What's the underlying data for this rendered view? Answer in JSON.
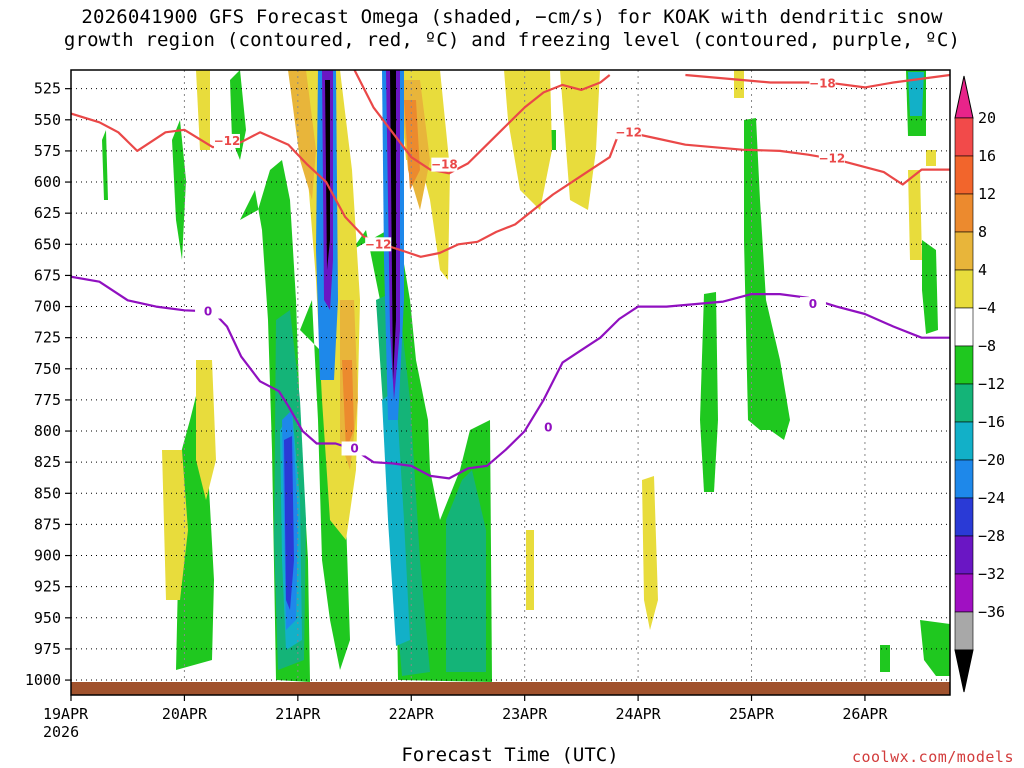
{
  "title": "2026041900 GFS Forecast Omega (shaded, −cm/s) for KOAK with dendritic snow\ngrowth region (contoured, red, ºC) and freezing level (contoured, purple, ºC)",
  "xlabel": "Forecast Time (UTC)",
  "credit": "coolwx.com/models",
  "chart_data": {
    "type": "heatmap",
    "x_ticks": [
      {
        "label": "19APR",
        "sublabel": "2026",
        "hours": 0
      },
      {
        "label": "20APR",
        "hours": 24
      },
      {
        "label": "21APR",
        "hours": 48
      },
      {
        "label": "22APR",
        "hours": 72
      },
      {
        "label": "23APR",
        "hours": 96
      },
      {
        "label": "24APR",
        "hours": 120
      },
      {
        "label": "25APR",
        "hours": 144
      },
      {
        "label": "26APR",
        "hours": 168
      }
    ],
    "xlim_hours": [
      0,
      186
    ],
    "y_ticks": [
      525,
      550,
      575,
      600,
      625,
      650,
      675,
      700,
      725,
      750,
      775,
      800,
      825,
      850,
      875,
      900,
      925,
      950,
      975,
      1000
    ],
    "ylim_hPa": [
      510,
      1012
    ],
    "grid": true,
    "colorbar": {
      "labels": [
        "20",
        "16",
        "12",
        "8",
        "4",
        "−4",
        "−8",
        "−12",
        "−16",
        "−20",
        "−24",
        "−28",
        "−32",
        "−36"
      ],
      "colors": [
        "#f24a4a",
        "#f2652c",
        "#ec8a2e",
        "#e8b53a",
        "#e8dc3c",
        "#ffffff",
        "#1fc81f",
        "#14b478",
        "#12b0c8",
        "#1e88ea",
        "#2a3ad6",
        "#6a16c4",
        "#a010c2",
        "#a8a8a8"
      ]
    },
    "contours": [
      {
        "kind": "freezing",
        "color": "#9010c0",
        "label": "0",
        "points": [
          [
            0,
            676
          ],
          [
            6,
            680
          ],
          [
            12,
            695
          ],
          [
            18,
            700
          ],
          [
            24,
            703
          ],
          [
            30,
            704
          ],
          [
            33,
            716
          ],
          [
            36,
            740
          ],
          [
            40,
            760
          ],
          [
            44,
            768
          ],
          [
            46,
            780
          ],
          [
            49,
            800
          ],
          [
            52,
            810
          ],
          [
            56,
            810
          ],
          [
            60,
            815
          ],
          [
            64,
            825
          ],
          [
            68,
            826
          ],
          [
            72,
            828
          ],
          [
            76,
            836
          ],
          [
            80,
            838
          ],
          [
            84,
            830
          ],
          [
            88,
            828
          ],
          [
            92,
            815
          ],
          [
            96,
            800
          ],
          [
            100,
            775
          ],
          [
            104,
            745
          ],
          [
            108,
            735
          ],
          [
            112,
            725
          ],
          [
            116,
            710
          ],
          [
            120,
            700
          ],
          [
            126,
            700
          ],
          [
            132,
            698
          ],
          [
            138,
            696
          ],
          [
            144,
            690
          ],
          [
            150,
            690
          ],
          [
            156,
            693
          ],
          [
            162,
            700
          ],
          [
            168,
            706
          ],
          [
            174,
            716
          ],
          [
            180,
            725
          ],
          [
            186,
            725
          ]
        ],
        "label_points": [
          [
            29,
            704
          ],
          [
            60,
            814
          ],
          [
            101,
            797
          ],
          [
            157,
            698
          ]
        ]
      },
      {
        "kind": "dgz",
        "color": "#ea4848",
        "label": "−12",
        "points": [
          [
            0,
            545
          ],
          [
            6,
            552
          ],
          [
            10,
            560
          ],
          [
            14,
            575
          ],
          [
            20,
            560
          ],
          [
            24,
            558
          ],
          [
            30,
            572
          ],
          [
            36,
            568
          ],
          [
            40,
            560
          ],
          [
            46,
            570
          ],
          [
            50,
            586
          ],
          [
            54,
            600
          ],
          [
            58,
            628
          ],
          [
            62,
            644
          ],
          [
            66,
            650
          ],
          [
            70,
            655
          ],
          [
            74,
            660
          ],
          [
            78,
            657
          ],
          [
            82,
            650
          ],
          [
            86,
            648
          ],
          [
            90,
            640
          ],
          [
            94,
            634
          ],
          [
            98,
            622
          ],
          [
            102,
            610
          ],
          [
            106,
            600
          ],
          [
            110,
            590
          ],
          [
            114,
            580
          ],
          [
            116,
            560
          ]
        ],
        "label_points": [
          [
            33,
            567
          ],
          [
            65,
            650
          ]
        ]
      },
      {
        "kind": "dgz",
        "color": "#ea4848",
        "label": "−12",
        "points": [
          [
            118,
            560
          ],
          [
            124,
            565
          ],
          [
            130,
            570
          ],
          [
            136,
            572
          ],
          [
            142,
            574
          ],
          [
            150,
            575
          ],
          [
            156,
            578
          ],
          [
            162,
            582
          ],
          [
            168,
            588
          ],
          [
            172,
            592
          ],
          [
            176,
            602
          ],
          [
            180,
            590
          ],
          [
            186,
            590
          ]
        ],
        "label_points": [
          [
            118,
            560
          ],
          [
            161,
            581
          ]
        ]
      },
      {
        "kind": "dgz",
        "color": "#ea4848",
        "label": "−18",
        "points": [
          [
            60,
            510
          ],
          [
            64,
            540
          ],
          [
            68,
            560
          ],
          [
            72,
            580
          ],
          [
            76,
            590
          ],
          [
            80,
            593
          ],
          [
            84,
            585
          ],
          [
            88,
            570
          ],
          [
            92,
            555
          ],
          [
            96,
            540
          ],
          [
            100,
            528
          ],
          [
            104,
            522
          ],
          [
            108,
            526
          ],
          [
            112,
            520
          ],
          [
            114,
            514
          ]
        ],
        "label_points": [
          [
            79,
            586
          ]
        ]
      },
      {
        "kind": "dgz",
        "color": "#ea4848",
        "label": "−18",
        "points": [
          [
            130,
            514
          ],
          [
            136,
            516
          ],
          [
            142,
            518
          ],
          [
            148,
            520
          ],
          [
            156,
            520
          ],
          [
            162,
            521
          ],
          [
            168,
            524
          ],
          [
            174,
            520
          ],
          [
            178,
            518
          ],
          [
            186,
            514
          ]
        ],
        "label_points": [
          [
            159,
            521
          ]
        ]
      }
    ],
    "surface_color": "#a0522d"
  }
}
